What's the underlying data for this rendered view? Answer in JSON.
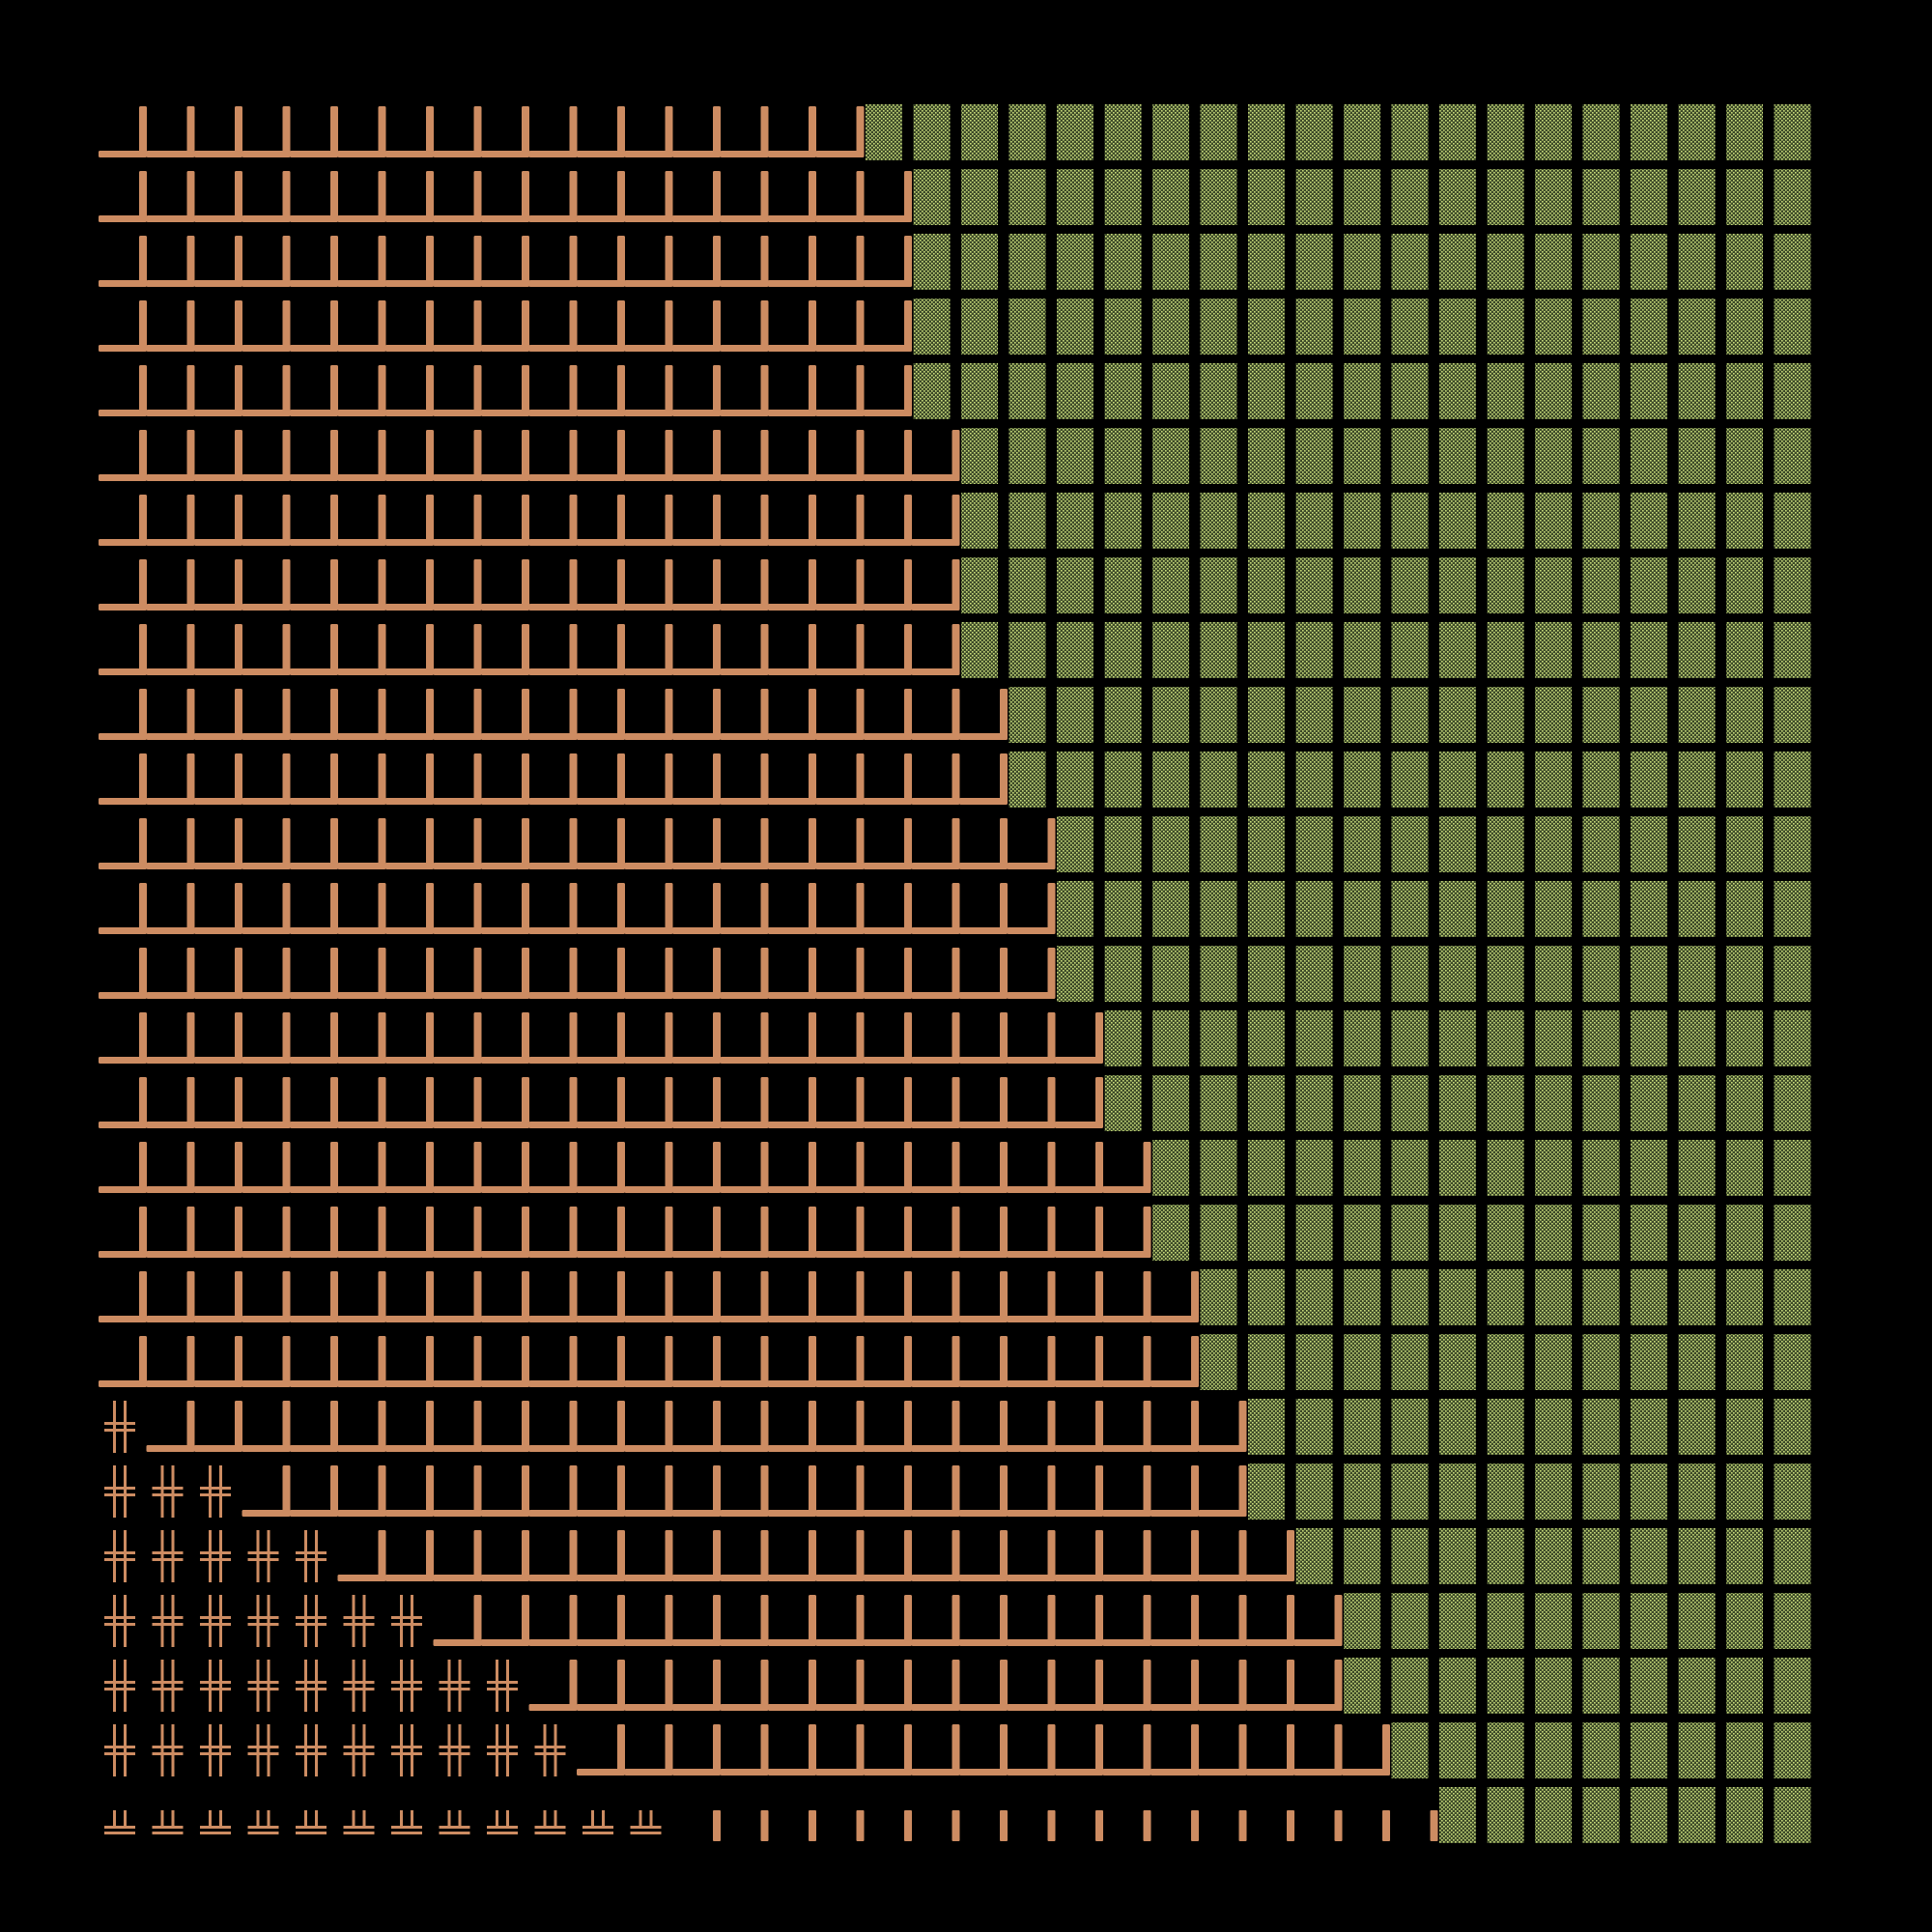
{
  "artwork": {
    "background": "#000000",
    "colors": {
      "copper": "#cd8c62",
      "moss_fill": "#3d4a28",
      "moss_dot": "#c9dc7c"
    },
    "glyph_names": {
      "chair": "copper-chair-glyph",
      "cross": "double-cross-glyph",
      "base": "double-base-glyph",
      "bar": "short-bar-glyph",
      "shade": "dotted-shade-block"
    },
    "row_ends": [
      16,
      17,
      17,
      17,
      17,
      18,
      18,
      18,
      18,
      19,
      19,
      20,
      20,
      20,
      21,
      21,
      22,
      22,
      23,
      23,
      24,
      24,
      25,
      26,
      26,
      27,
      28
    ],
    "row_lead_crosses": [
      0,
      0,
      0,
      0,
      0,
      0,
      0,
      0,
      0,
      0,
      0,
      0,
      0,
      0,
      0,
      0,
      0,
      0,
      0,
      0,
      1,
      3,
      5,
      7,
      9,
      10,
      0
    ],
    "last_row_bases": 12,
    "last_row_bars": 16
  }
}
